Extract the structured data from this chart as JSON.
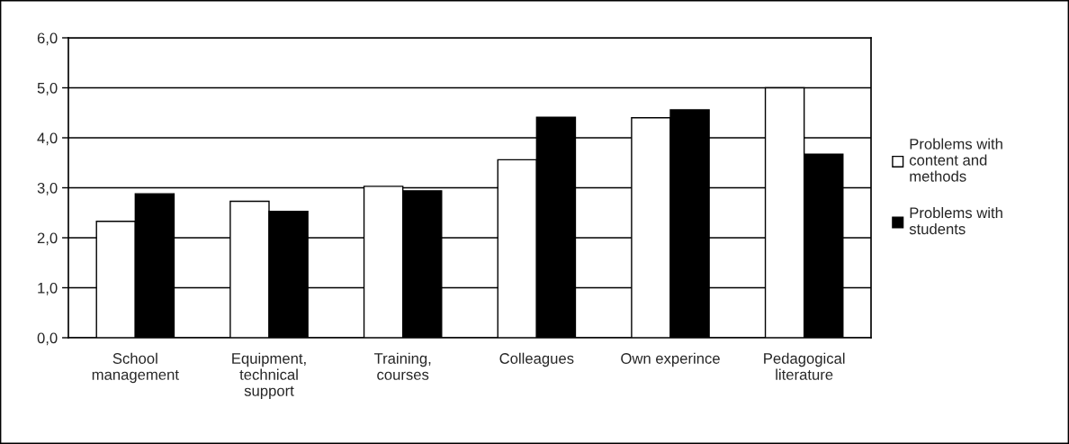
{
  "chart_data": {
    "type": "bar",
    "categories": [
      "School\nmanagement",
      "Equipment,\ntechnical\nsupport",
      "Training,\ncourses",
      "Colleagues",
      "Own experince",
      "Pedagogical\nliterature"
    ],
    "series": [
      {
        "name": "Problems with\ncontent and\nmethods",
        "color": "#ffffff",
        "values": [
          2.33,
          2.73,
          3.03,
          3.56,
          4.4,
          5.0
        ]
      },
      {
        "name": "Problems with\nstudents",
        "color": "#000000",
        "values": [
          2.88,
          2.53,
          2.94,
          4.41,
          4.56,
          3.67
        ]
      }
    ],
    "ylim": [
      0,
      6
    ],
    "yticks": [
      {
        "value": 0,
        "label": "0,0"
      },
      {
        "value": 1,
        "label": "1,0"
      },
      {
        "value": 2,
        "label": "2,0"
      },
      {
        "value": 3,
        "label": "3,0"
      },
      {
        "value": 4,
        "label": "4,0"
      },
      {
        "value": 5,
        "label": "5,0"
      },
      {
        "value": 6,
        "label": "6,0"
      }
    ],
    "grid": "y",
    "legend": "right"
  }
}
